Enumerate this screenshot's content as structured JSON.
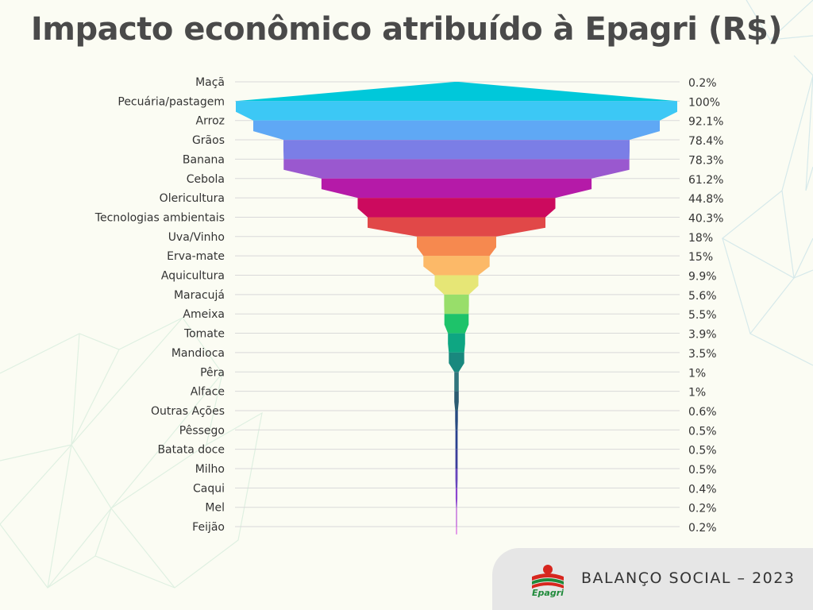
{
  "title": "Impacto econômico atribuído à Epagri (R$)",
  "footer": {
    "logo_text": "Epagri",
    "text": "BALANÇO SOCIAL – 2023"
  },
  "colors": {
    "background": "#fbfcf3",
    "title": "#4a4a4a",
    "footer_bg": "#e6e6e6",
    "logo_green": "#1f8a3a",
    "logo_red": "#d7261e"
  },
  "chart_data": {
    "type": "funnel",
    "title": "Impacto econômico atribuído à Epagri (R$)",
    "value_unit": "% of maximum",
    "categories": [
      "Maçã",
      "Pecuária/pastagem",
      "Arroz",
      "Grãos",
      "Banana",
      "Cebola",
      "Olericultura",
      "Tecnologias ambientais",
      "Uva/Vinho",
      "Erva-mate",
      "Aquicultura",
      "Maracujá",
      "Ameixa",
      "Tomate",
      "Mandioca",
      "Pêra",
      "Alface",
      "Outras Ações",
      "Pêssego",
      "Batata doce",
      "Milho",
      "Caqui",
      "Mel",
      "Feijão"
    ],
    "values": [
      0.2,
      100,
      92.1,
      78.4,
      78.3,
      61.2,
      44.8,
      40.3,
      18,
      15,
      9.9,
      5.6,
      5.5,
      3.9,
      3.5,
      1,
      1,
      0.6,
      0.5,
      0.5,
      0.5,
      0.4,
      0.2,
      0.2
    ],
    "value_labels": [
      "0.2%",
      "100%",
      "92.1%",
      "78.4%",
      "78.3%",
      "61.2%",
      "44.8%",
      "40.3%",
      "18%",
      "15%",
      "9.9%",
      "5.6%",
      "5.5%",
      "3.9%",
      "3.5%",
      "1%",
      "1%",
      "0.6%",
      "0.5%",
      "0.5%",
      "0.5%",
      "0.4%",
      "0.2%",
      "0.2%"
    ],
    "colors": [
      "#00c8da",
      "#3cc8f5",
      "#5fa8f5",
      "#7b7ee6",
      "#9a58cf",
      "#b51aa8",
      "#cc0a5e",
      "#e14848",
      "#f6894f",
      "#fcb968",
      "#e6e676",
      "#98de6a",
      "#1ec36a",
      "#0ea682",
      "#19887e",
      "#31757d",
      "#2c5c72",
      "#274a80",
      "#2a418f",
      "#3b3d9a",
      "#6845bc",
      "#8d45cf",
      "#b64ed6",
      "#d35ce0"
    ],
    "gridlines": true
  }
}
